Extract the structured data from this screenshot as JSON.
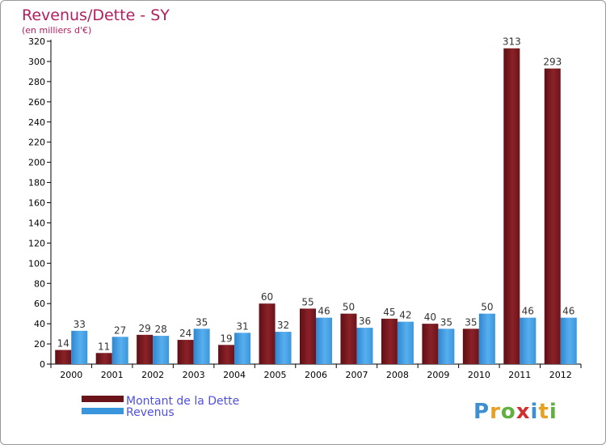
{
  "chart_data": {
    "type": "bar",
    "title": "Revenus/Dette - SY",
    "subtitle": "(en milliers d'€)",
    "categories": [
      "2000",
      "2001",
      "2002",
      "2003",
      "2004",
      "2005",
      "2006",
      "2007",
      "2008",
      "2009",
      "2010",
      "2011",
      "2012"
    ],
    "series": [
      {
        "name": "Montant de la Dette",
        "color": "#7a1a1f",
        "values": [
          14,
          11,
          29,
          24,
          19,
          60,
          55,
          50,
          45,
          40,
          35,
          313,
          293
        ]
      },
      {
        "name": "Revenus",
        "color": "#3a96dc",
        "values": [
          33,
          27,
          28,
          35,
          31,
          32,
          46,
          36,
          42,
          35,
          50,
          46,
          46
        ]
      }
    ],
    "ylim": [
      0,
      320
    ],
    "yticks": [
      0,
      20,
      40,
      60,
      80,
      100,
      120,
      140,
      160,
      180,
      200,
      220,
      240,
      260,
      280,
      300,
      320
    ],
    "grid": false,
    "legend": "bottom-left",
    "colors": {
      "title": "#b02060",
      "legend_text": "#5050e0",
      "axis": "#000000"
    }
  },
  "brand": {
    "logo_text": "Proxiti"
  }
}
